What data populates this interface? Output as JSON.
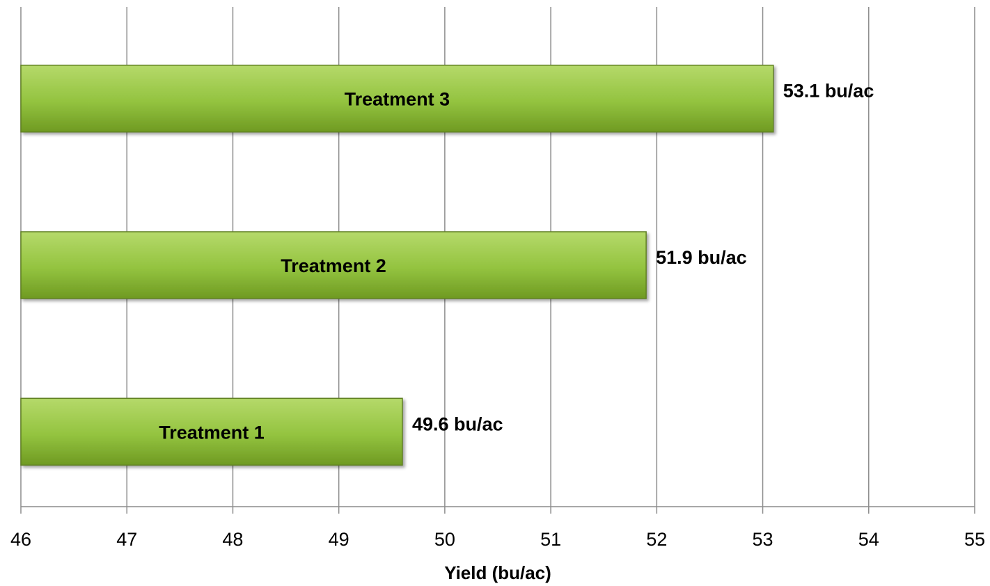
{
  "chart_data": {
    "type": "bar",
    "orientation": "horizontal",
    "categories": [
      "Treatment 1",
      "Treatment 2",
      "Treatment 3"
    ],
    "values": [
      49.6,
      51.9,
      53.1
    ],
    "data_labels": [
      "49.6 bu/ac",
      "51.9 bu/ac",
      "53.1 bu/ac"
    ],
    "title": "",
    "xlabel": "Yield (bu/ac)",
    "ylabel": "",
    "xlim": [
      46,
      55
    ],
    "x_ticks": [
      "46",
      "47",
      "48",
      "49",
      "50",
      "51",
      "52",
      "53",
      "54",
      "55"
    ],
    "grid": "vertical",
    "legend": "none",
    "colors": {
      "bar_top": "#b5d96a",
      "bar_mid": "#93c33f",
      "bar_bottom": "#6f9a22",
      "bar_edge": "#5f7f22"
    }
  }
}
